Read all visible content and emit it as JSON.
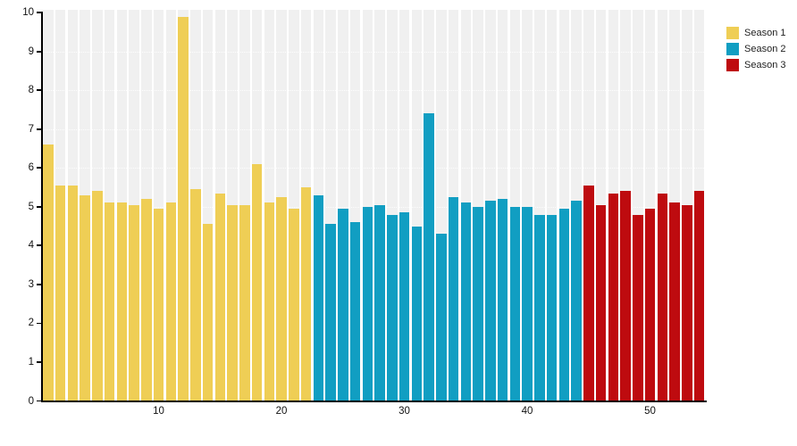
{
  "chart_data": {
    "type": "bar",
    "title": "",
    "xlabel": "",
    "ylabel": "",
    "ylim": [
      0,
      10
    ],
    "yticks": [
      0,
      1,
      2,
      3,
      4,
      5,
      6,
      7,
      8,
      9,
      10
    ],
    "xticks": [
      10,
      20,
      30,
      40,
      50
    ],
    "n_bars": 54,
    "grid": "faint-white-dotted-horizontal",
    "background_column_color": "#F0F0F0",
    "legend_position": "top-right",
    "series": [
      {
        "name": "Season 1",
        "color": "#EFCE55",
        "start_index": 1,
        "values": [
          6.6,
          5.55,
          5.55,
          5.3,
          5.4,
          5.1,
          5.1,
          5.05,
          5.2,
          4.95,
          5.1,
          9.9,
          5.45,
          4.55,
          5.35,
          5.05,
          5.05,
          6.1,
          5.1,
          5.25,
          4.95,
          5.5
        ]
      },
      {
        "name": "Season 2",
        "color": "#119EC2",
        "start_index": 23,
        "values": [
          5.3,
          4.55,
          4.95,
          4.6,
          5.0,
          5.05,
          4.8,
          4.85,
          4.5,
          7.4,
          4.3,
          5.25,
          5.1,
          5.0,
          5.15,
          5.2,
          5.0,
          5.0,
          4.8,
          4.8,
          4.95,
          5.15
        ]
      },
      {
        "name": "Season 3",
        "color": "#BE0B0F",
        "start_index": 45,
        "values": [
          5.55,
          5.05,
          5.35,
          5.4,
          4.8,
          4.95,
          5.35,
          5.1,
          5.05,
          5.4
        ]
      }
    ]
  },
  "legend": {
    "items": [
      {
        "label": "Season 1",
        "color": "#EFCE55"
      },
      {
        "label": "Season 2",
        "color": "#119EC2"
      },
      {
        "label": "Season 3",
        "color": "#BE0B0F"
      }
    ]
  }
}
